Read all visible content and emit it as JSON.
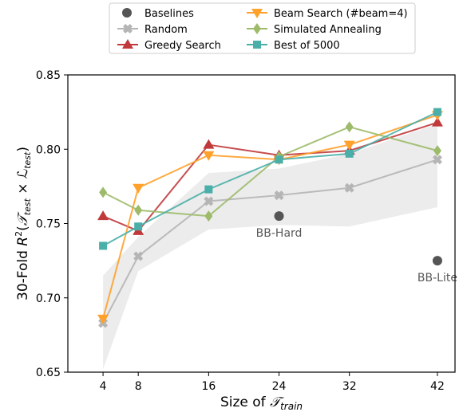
{
  "chart_data": {
    "type": "line",
    "xlabel": "Size of 𝒯_train",
    "ylabel": "30-Fold R²(𝒯_test × ℒ_test)",
    "x": [
      4,
      8,
      16,
      24,
      32,
      42
    ],
    "xlim": [
      0,
      44
    ],
    "ylim": [
      0.65,
      0.85
    ],
    "x_ticks": [
      4,
      8,
      16,
      24,
      32,
      42
    ],
    "y_ticks": [
      0.65,
      0.7,
      0.75,
      0.8,
      0.85
    ],
    "y_tick_labels": [
      "0.65",
      "0.70",
      "0.75",
      "0.80",
      "0.85"
    ],
    "grid": false,
    "legend_position": "top-center (outside, above plot)",
    "series": [
      {
        "name": "Random",
        "color": "#b5b5b5",
        "marker": "x",
        "values": [
          0.683,
          0.728,
          0.765,
          0.769,
          0.774,
          0.793
        ],
        "band_lower": [
          0.652,
          0.718,
          0.746,
          0.749,
          0.748,
          0.761
        ],
        "band_upper": [
          0.715,
          0.741,
          0.784,
          0.787,
          0.797,
          0.817
        ]
      },
      {
        "name": "Greedy Search",
        "color": "#c0393b",
        "marker": "triangle-up",
        "values": [
          0.755,
          0.745,
          0.803,
          0.796,
          0.799,
          0.818
        ]
      },
      {
        "name": "Beam Search (#beam=4)",
        "color": "#ffa12b",
        "marker": "triangle-down",
        "values": [
          0.686,
          0.774,
          0.796,
          0.793,
          0.803,
          0.823
        ]
      },
      {
        "name": "Simulated Annealing",
        "color": "#9dbb6a",
        "marker": "diamond",
        "values": [
          0.771,
          0.759,
          0.755,
          0.795,
          0.815,
          0.799
        ]
      },
      {
        "name": "Best of 5000",
        "color": "#4bafa9",
        "marker": "square",
        "values": [
          0.735,
          0.748,
          0.773,
          0.793,
          0.797,
          0.825
        ]
      }
    ],
    "baselines": {
      "name": "Baselines",
      "color": "#555555",
      "points": [
        {
          "x": 24,
          "y": 0.755,
          "label": "BB-Hard"
        },
        {
          "x": 42,
          "y": 0.725,
          "label": "BB-Lite"
        }
      ]
    },
    "legend_order": [
      "Baselines",
      "Random",
      "Greedy Search",
      "Beam Search (#beam=4)",
      "Simulated Annealing",
      "Best of 5000"
    ]
  }
}
